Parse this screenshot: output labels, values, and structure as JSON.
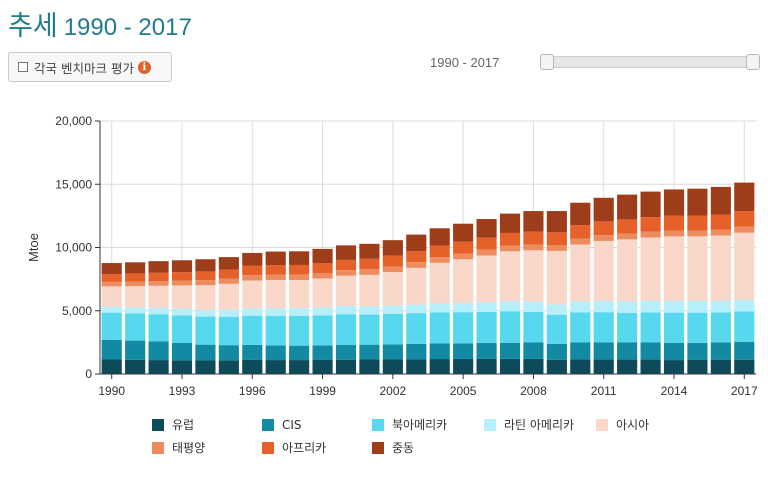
{
  "header": {
    "title": "추세",
    "range": "1990 - 2017"
  },
  "controls": {
    "benchmark_label": "각국 벤치마크 평가",
    "info_glyph": "i",
    "range_label": "1990 - 2017",
    "slider_range": [
      1990,
      2017
    ]
  },
  "chart_data": {
    "type": "bar",
    "stacked": true,
    "ylabel": "Mtoe",
    "ylim": [
      0,
      20000
    ],
    "yticks": [
      0,
      5000,
      10000,
      15000,
      20000
    ],
    "ytick_labels": [
      "0",
      "5,000",
      "10,000",
      "15,000",
      "20,000"
    ],
    "xtick_labels": [
      "1990",
      "1993",
      "1996",
      "1999",
      "2002",
      "2005",
      "2008",
      "2011",
      "2014",
      "2017"
    ],
    "grid": "vertical and horizontal",
    "legend_position": "bottom",
    "categories": [
      1990,
      1991,
      1992,
      1993,
      1994,
      1995,
      1996,
      1997,
      1998,
      1999,
      2000,
      2001,
      2002,
      2003,
      2004,
      2005,
      2006,
      2007,
      2008,
      2009,
      2010,
      2011,
      2012,
      2013,
      2014,
      2015,
      2016,
      2017
    ],
    "series": [
      {
        "name": "유럽",
        "color": "#0d4a5a",
        "values": [
          1150,
          1120,
          1100,
          1080,
          1070,
          1080,
          1110,
          1100,
          1100,
          1110,
          1130,
          1150,
          1150,
          1170,
          1180,
          1190,
          1200,
          1200,
          1190,
          1130,
          1170,
          1140,
          1140,
          1140,
          1100,
          1110,
          1110,
          1130
        ]
      },
      {
        "name": "CIS",
        "color": "#128aa3",
        "values": [
          1550,
          1520,
          1470,
          1370,
          1250,
          1200,
          1190,
          1150,
          1140,
          1150,
          1160,
          1170,
          1190,
          1210,
          1230,
          1230,
          1260,
          1270,
          1300,
          1250,
          1320,
          1370,
          1370,
          1350,
          1350,
          1350,
          1380,
          1420
        ]
      },
      {
        "name": "북아메리카",
        "color": "#58d8ef",
        "values": [
          2150,
          2140,
          2160,
          2190,
          2220,
          2250,
          2310,
          2330,
          2350,
          2370,
          2440,
          2380,
          2410,
          2430,
          2470,
          2470,
          2450,
          2490,
          2420,
          2310,
          2390,
          2380,
          2330,
          2380,
          2400,
          2390,
          2380,
          2390
        ]
      },
      {
        "name": "라틴 아메리카",
        "color": "#b6eef9",
        "values": [
          480,
          490,
          500,
          510,
          530,
          550,
          580,
          600,
          610,
          620,
          640,
          640,
          660,
          680,
          710,
          730,
          760,
          790,
          820,
          820,
          860,
          880,
          900,
          920,
          930,
          930,
          920,
          930
        ]
      },
      {
        "name": "아시아",
        "color": "#f9d8ca",
        "values": [
          1600,
          1680,
          1750,
          1850,
          1950,
          2050,
          2200,
          2250,
          2230,
          2300,
          2400,
          2500,
          2650,
          2900,
          3200,
          3450,
          3700,
          3950,
          4050,
          4220,
          4500,
          4750,
          4900,
          5000,
          5100,
          5100,
          5150,
          5300
        ]
      },
      {
        "name": "태평양",
        "color": "#ed8d5f",
        "values": [
          350,
          360,
          370,
          380,
          400,
          410,
          420,
          430,
          420,
          430,
          440,
          440,
          440,
          450,
          450,
          450,
          450,
          460,
          450,
          440,
          460,
          460,
          470,
          470,
          460,
          460,
          460,
          470
        ]
      },
      {
        "name": "아프리카",
        "color": "#e6612a",
        "values": [
          620,
          640,
          650,
          670,
          690,
          710,
          740,
          750,
          770,
          790,
          810,
          830,
          850,
          880,
          920,
          940,
          960,
          990,
          1020,
          1030,
          1070,
          1090,
          1110,
          1140,
          1170,
          1190,
          1210,
          1240
        ]
      },
      {
        "name": "중동",
        "color": "#9d3d1a",
        "values": [
          870,
          880,
          920,
          940,
          960,
          990,
          1020,
          1070,
          1080,
          1120,
          1150,
          1180,
          1230,
          1300,
          1360,
          1420,
          1470,
          1530,
          1630,
          1680,
          1770,
          1860,
          1960,
          2020,
          2080,
          2120,
          2180,
          2250
        ]
      }
    ]
  },
  "legend": [
    {
      "label": "유럽",
      "color": "#0d4a5a"
    },
    {
      "label": "CIS",
      "color": "#128aa3"
    },
    {
      "label": "북아메리카",
      "color": "#58d8ef"
    },
    {
      "label": "라틴 아메리카",
      "color": "#b6eef9"
    },
    {
      "label": "아시아",
      "color": "#f9d8ca"
    },
    {
      "label": "태평양",
      "color": "#ed8d5f"
    },
    {
      "label": "아프리카",
      "color": "#e6612a"
    },
    {
      "label": "중동",
      "color": "#9d3d1a"
    }
  ]
}
